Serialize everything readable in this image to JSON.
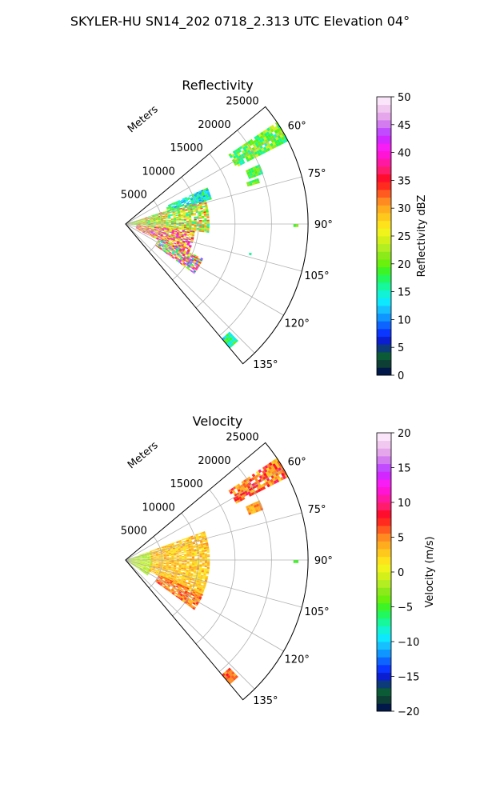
{
  "suptitle": "SKYLER-HU  SN14_202  0718_2.313 UTC Elevation 04°",
  "chart_data": [
    {
      "type": "heatmap",
      "projection": "polar-sector",
      "title": "Reflectivity",
      "radial_axis_label": "Meters",
      "radial_ticks": [
        5000,
        10000,
        15000,
        20000,
        25000
      ],
      "radial_tick_labels": [
        "5000",
        "10000",
        "15000",
        "20000",
        "25000"
      ],
      "rlim": [
        0,
        25000
      ],
      "theta_ticks": [
        60,
        75,
        90,
        105,
        120,
        135
      ],
      "theta_tick_labels": [
        "60°",
        "75°",
        "90°",
        "105°",
        "120°",
        "135°"
      ],
      "theta_range": [
        50,
        140
      ],
      "grid": true,
      "colorbar": {
        "label": "Reflectivity dBZ",
        "range": [
          0,
          50
        ],
        "ticks": [
          "0",
          "5",
          "10",
          "15",
          "20",
          "25",
          "30",
          "35",
          "40",
          "45",
          "50"
        ],
        "colors": [
          "#02184a",
          "#0e3f35",
          "#0b5b37",
          "#0d3a78",
          "#0b1fd0",
          "#0a36ff",
          "#0d64ff",
          "#1096ff",
          "#16c0ff",
          "#0de8ff",
          "#12f2d6",
          "#17f79b",
          "#21f75f",
          "#3df526",
          "#6bef0c",
          "#8dea1a",
          "#b3ee22",
          "#d3f01a",
          "#f1f41c",
          "#fde21c",
          "#ffc81c",
          "#ffad1f",
          "#ff8a22",
          "#ff5a20",
          "#ff2b1e",
          "#ff0d2d",
          "#ff1c6b",
          "#ff19a2",
          "#ff14d6",
          "#f81cf5",
          "#d227ff",
          "#c04bff",
          "#d27cf0",
          "#e5a6ec",
          "#f1c8f0",
          "#fbe5fb"
        ]
      },
      "echo_regions": [
        {
          "name": "main-echo-east",
          "r": [
            300,
            11500
          ],
          "theta": [
            72,
            96
          ],
          "value_range": [
            15,
            34
          ]
        },
        {
          "name": "main-echo-core",
          "r": [
            1500,
            9500
          ],
          "theta": [
            96,
            116
          ],
          "value_range": [
            22,
            44
          ]
        },
        {
          "name": "main-echo-south",
          "r": [
            5000,
            11500
          ],
          "theta": [
            114,
            126
          ],
          "value_range": [
            10,
            46
          ]
        },
        {
          "name": "echo-north",
          "r": [
            6000,
            12000
          ],
          "theta": [
            66,
            74
          ],
          "value_range": [
            10,
            20
          ]
        },
        {
          "name": "band-60",
          "r": [
            17000,
            25000
          ],
          "theta": [
            56,
            63
          ],
          "value_range": [
            15,
            25
          ]
        },
        {
          "name": "band-68",
          "r": [
            18000,
            20000
          ],
          "theta": [
            66,
            70
          ],
          "value_range": [
            15,
            22
          ]
        },
        {
          "name": "band-75",
          "r": [
            17500,
            19000
          ],
          "theta": [
            71,
            73
          ],
          "value_range": [
            15,
            25
          ]
        },
        {
          "name": "ring-line",
          "r": [
            23000,
            23400
          ],
          "theta": [
            90,
            91
          ],
          "value_range": [
            18,
            22
          ]
        },
        {
          "name": "blob-103",
          "r": [
            17400,
            17600
          ],
          "theta": [
            103,
            104
          ],
          "value_range": [
            14,
            16
          ]
        },
        {
          "name": "far-137",
          "r": [
            20500,
            22000
          ],
          "theta": [
            136,
            140
          ],
          "value_range": [
            12,
            20
          ]
        }
      ]
    },
    {
      "type": "heatmap",
      "projection": "polar-sector",
      "title": "Velocity",
      "radial_axis_label": "Meters",
      "radial_ticks": [
        5000,
        10000,
        15000,
        20000,
        25000
      ],
      "radial_tick_labels": [
        "5000",
        "10000",
        "15000",
        "20000",
        "25000"
      ],
      "rlim": [
        0,
        25000
      ],
      "theta_ticks": [
        60,
        75,
        90,
        105,
        120,
        135
      ],
      "theta_tick_labels": [
        "60°",
        "75°",
        "90°",
        "105°",
        "120°",
        "135°"
      ],
      "theta_range": [
        50,
        140
      ],
      "grid": true,
      "colorbar": {
        "label": "Velocity (m/s)",
        "range": [
          -20,
          20
        ],
        "ticks": [
          "−20",
          "−15",
          "−10",
          "−5",
          "0",
          "5",
          "10",
          "15",
          "20"
        ],
        "colors": [
          "#02184a",
          "#0e3f35",
          "#0b5b37",
          "#0d3a78",
          "#0b1fd0",
          "#0a36ff",
          "#0d64ff",
          "#1096ff",
          "#16c0ff",
          "#0de8ff",
          "#12f2d6",
          "#17f79b",
          "#21f75f",
          "#3df526",
          "#6bef0c",
          "#8dea1a",
          "#b3ee22",
          "#d3f01a",
          "#f1f41c",
          "#fde21c",
          "#ffc81c",
          "#ffad1f",
          "#ff8a22",
          "#ff5a20",
          "#ff2b1e",
          "#ff0d2d",
          "#ff1c6b",
          "#ff19a2",
          "#ff14d6",
          "#f81cf5",
          "#d227ff",
          "#c04bff",
          "#d27cf0",
          "#e5a6ec",
          "#f1c8f0",
          "#fbe5fb"
        ]
      },
      "echo_regions": [
        {
          "name": "near-radar",
          "r": [
            200,
            3500
          ],
          "theta": [
            70,
            125
          ],
          "value_range": [
            -3,
            0
          ]
        },
        {
          "name": "main-echo",
          "r": [
            3500,
            11500
          ],
          "theta": [
            70,
            116
          ],
          "value_range": [
            1,
            5
          ]
        },
        {
          "name": "south-echo",
          "r": [
            5000,
            11500
          ],
          "theta": [
            114,
            126
          ],
          "value_range": [
            3,
            8
          ]
        },
        {
          "name": "band-60",
          "r": [
            17000,
            25000
          ],
          "theta": [
            56,
            63
          ],
          "value_range": [
            2,
            10
          ]
        },
        {
          "name": "band-68",
          "r": [
            18000,
            20000
          ],
          "theta": [
            66,
            70
          ],
          "value_range": [
            3,
            6
          ]
        },
        {
          "name": "ring-line",
          "r": [
            23000,
            23400
          ],
          "theta": [
            90,
            91
          ],
          "value_range": [
            -5,
            -4
          ]
        },
        {
          "name": "far-137",
          "r": [
            20500,
            22000
          ],
          "theta": [
            136,
            140
          ],
          "value_range": [
            4,
            8
          ]
        }
      ]
    }
  ]
}
